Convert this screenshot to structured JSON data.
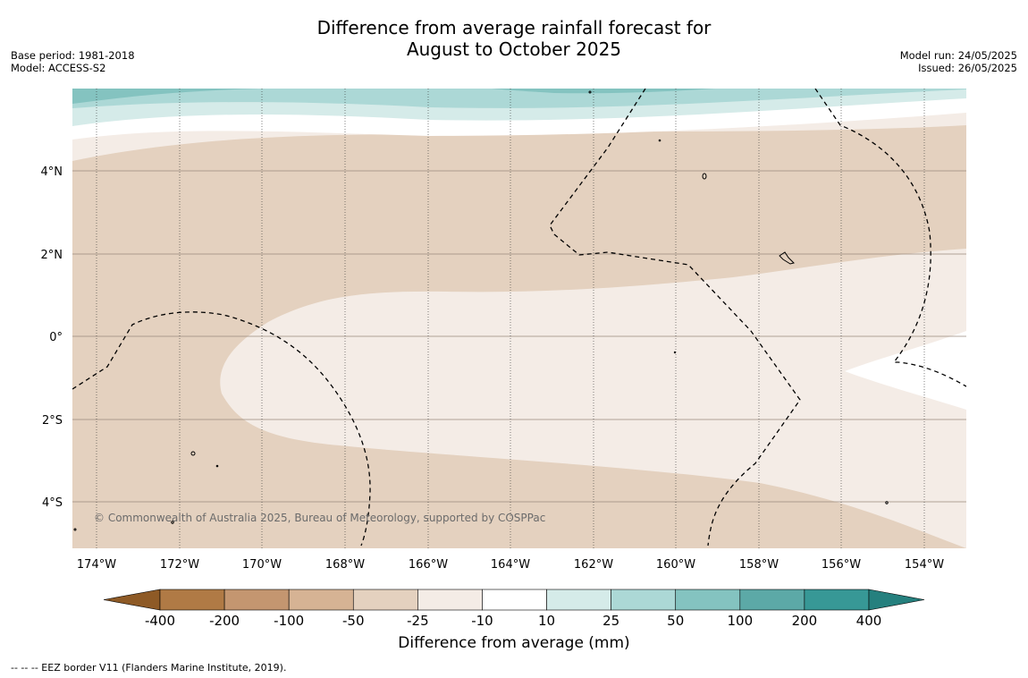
{
  "title": {
    "line1": "Difference from average rainfall forecast for",
    "line2": "August to October 2025"
  },
  "meta_left": {
    "base_period": "Base period: 1981-2018",
    "model": "Model: ACCESS-S2"
  },
  "meta_right": {
    "model_run": "Model run: 24/05/2025",
    "issued": "Issued: 26/05/2025"
  },
  "map": {
    "lat_labels": [
      "4°N",
      "2°N",
      "0°",
      "2°S",
      "4°S"
    ],
    "lon_labels": [
      "174°W",
      "172°W",
      "170°W",
      "168°W",
      "166°W",
      "164°W",
      "162°W",
      "160°W",
      "158°W",
      "156°W",
      "154°W"
    ],
    "copyright": "© Commonwealth of Australia 2025, Bureau of Meteorology, supported by COSPPac"
  },
  "colorbar": {
    "title": "Difference from average (mm)",
    "tick_labels": [
      "-400",
      "-200",
      "-100",
      "-50",
      "-25",
      "-10",
      "10",
      "25",
      "50",
      "100",
      "200",
      "400"
    ],
    "colors": [
      "#8e5a26",
      "#b07a45",
      "#c49670",
      "#d6b394",
      "#e4d1bf",
      "#f4ece6",
      "#ffffff",
      "#d5ebe9",
      "#acd8d6",
      "#84c3c0",
      "#5ca9a7",
      "#379896",
      "#25807e"
    ]
  },
  "footnote": "--  --  -- EEZ border V11 (Flanders Marine Institute, 2019)."
}
